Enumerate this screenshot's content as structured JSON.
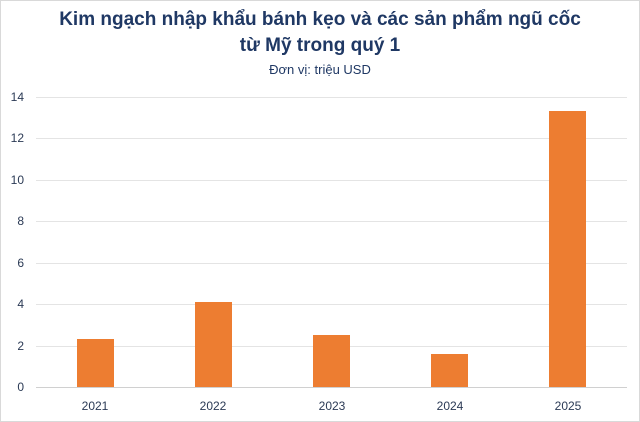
{
  "chart_data": {
    "type": "bar",
    "title": "Kim ngạch nhập khẩu bánh kẹo và các sản phẩm ngũ cốc từ Mỹ trong quý 1",
    "title_lines": [
      "Kim ngạch nhập khẩu bánh kẹo và các sản phẩm ngũ cốc",
      "từ Mỹ trong quý 1"
    ],
    "subtitle": "Đơn vị: triệu USD",
    "xlabel": "",
    "ylabel": "",
    "categories": [
      "2021",
      "2022",
      "2023",
      "2024",
      "2025"
    ],
    "values": [
      2.3,
      4.1,
      2.5,
      1.6,
      13.3
    ],
    "ylim": [
      0,
      14
    ],
    "yticks": [
      "0",
      "2",
      "4",
      "6",
      "8",
      "10",
      "12",
      "14"
    ],
    "grid": true,
    "legend": null,
    "bar_color": "#ed7d31"
  }
}
